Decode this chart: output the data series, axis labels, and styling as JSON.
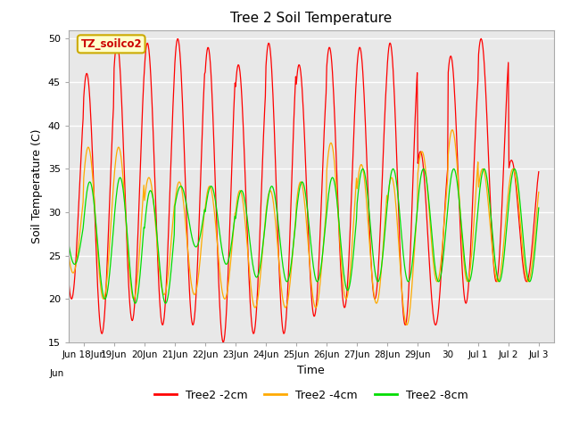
{
  "title": "Tree 2 Soil Temperature",
  "xlabel": "Time",
  "ylabel": "Soil Temperature (C)",
  "ylim": [
    15,
    51
  ],
  "yticks": [
    15,
    20,
    25,
    30,
    35,
    40,
    45,
    50
  ],
  "annotation_text": "TZ_soilco2",
  "legend_labels": [
    "Tree2 -2cm",
    "Tree2 -4cm",
    "Tree2 -8cm"
  ],
  "line_colors": [
    "#ff0000",
    "#ffaa00",
    "#00dd00"
  ],
  "fig_bg_color": "#ffffff",
  "plot_bg_color": "#e8e8e8",
  "grid_color": "#ffffff",
  "x_tick_labels": [
    "Jun 18Jun",
    "19Jun",
    "20Jun",
    "21Jun",
    "22Jun",
    "23Jun",
    "24Jun",
    "25Jun",
    "26Jun",
    "27Jun",
    "28Jun",
    "29Jun",
    "30",
    "Jul 1",
    "Jul 2",
    "Jul 3"
  ],
  "num_days": 16,
  "peaks_2cm": [
    44,
    46,
    49.5,
    49.5,
    50,
    49,
    47,
    49.5,
    47,
    49,
    49,
    49.5,
    37,
    48,
    50,
    36
  ],
  "troughs_2cm": [
    20,
    16,
    17.5,
    17,
    17,
    15,
    16,
    16,
    18,
    19,
    20,
    17,
    17,
    19.5,
    22,
    22
  ],
  "peaks_4cm": [
    34,
    37.5,
    37.5,
    34,
    33.5,
    33,
    32.5,
    32.5,
    33.5,
    38,
    35.5,
    34,
    37,
    39.5,
    35,
    35
  ],
  "troughs_4cm": [
    23,
    20,
    20,
    20.5,
    20.5,
    20,
    19,
    19,
    19,
    20,
    19.5,
    17,
    22,
    22,
    22,
    22
  ],
  "peaks_8cm": [
    31,
    33.5,
    34,
    32.5,
    33,
    33,
    32.5,
    33,
    33.5,
    34,
    35,
    35,
    35,
    35,
    35,
    35
  ],
  "troughs_8cm": [
    24,
    20,
    19.5,
    19.5,
    26,
    24,
    22.5,
    22,
    22,
    21,
    22,
    22,
    22,
    22,
    22,
    22
  ],
  "phase_2cm": 0.0,
  "phase_4cm": 0.05,
  "phase_8cm": 0.1
}
